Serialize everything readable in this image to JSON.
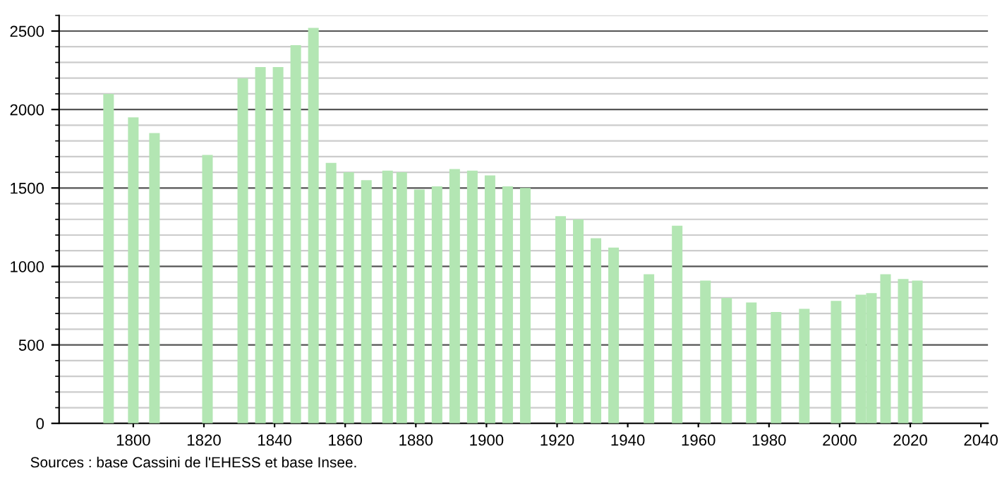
{
  "chart_data": {
    "type": "bar",
    "x": [
      1793,
      1800,
      1806,
      1821,
      1831,
      1836,
      1841,
      1846,
      1851,
      1856,
      1861,
      1866,
      1872,
      1876,
      1881,
      1886,
      1891,
      1896,
      1901,
      1906,
      1911,
      1921,
      1926,
      1931,
      1936,
      1946,
      1954,
      1962,
      1968,
      1975,
      1982,
      1990,
      1999,
      2006,
      2009,
      2013,
      2018,
      2022
    ],
    "values": [
      2100,
      1950,
      1850,
      1710,
      2200,
      2270,
      2270,
      2410,
      2520,
      1660,
      1600,
      1550,
      1610,
      1600,
      1490,
      1510,
      1620,
      1610,
      1580,
      1510,
      1500,
      1320,
      1300,
      1180,
      1120,
      950,
      1260,
      910,
      800,
      770,
      710,
      730,
      780,
      820,
      830,
      950,
      920,
      910
    ],
    "color": "#b3e6b3",
    "xlim": [
      1779,
      2042
    ],
    "xticks": [
      1800,
      1820,
      1840,
      1860,
      1880,
      1900,
      1920,
      1940,
      1960,
      1980,
      2000,
      2020,
      2040
    ],
    "ylim": [
      0,
      2600
    ],
    "yticks": [
      0,
      500,
      1000,
      1500,
      2000,
      2500
    ],
    "grid": "y",
    "annotations": [
      "Sources : base Cassini de l'EHESS et base Insee."
    ]
  }
}
